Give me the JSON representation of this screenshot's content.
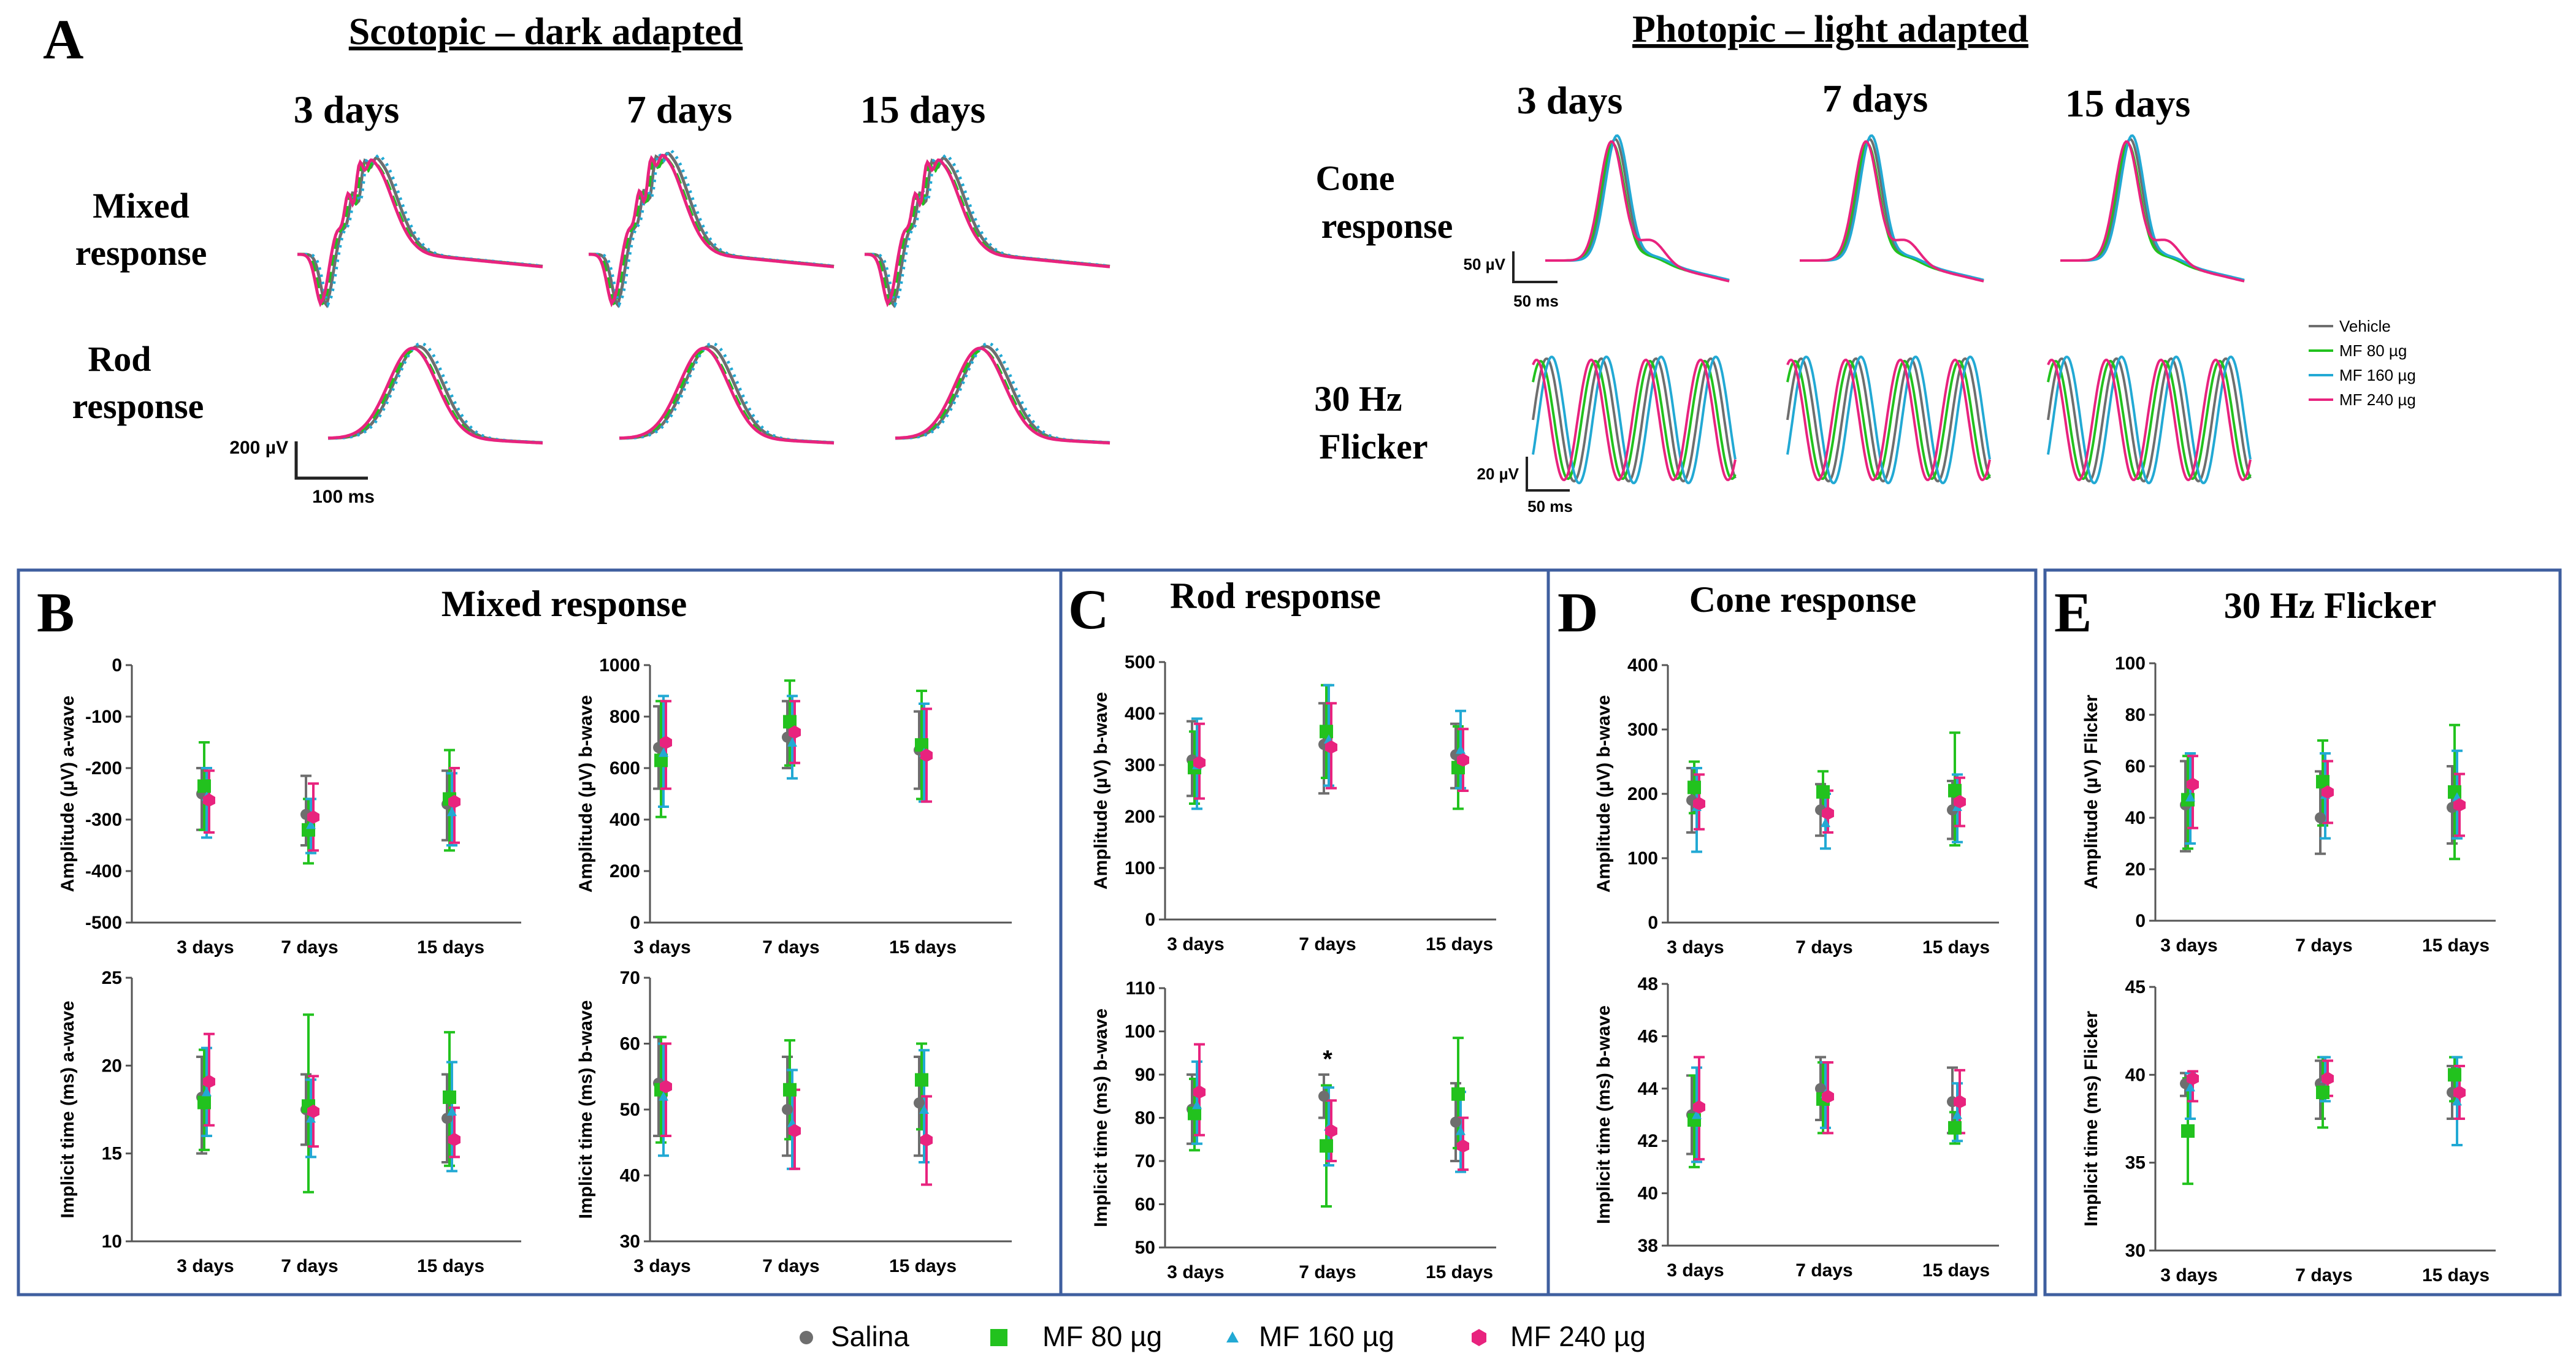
{
  "panelA": {
    "letter": "A",
    "scotopic_title": "Scotopic – dark adapted",
    "photopic_title": "Photopic – light adapted",
    "scotopic_days": [
      "3 days",
      "7 days",
      "15 days"
    ],
    "photopic_days": [
      "3 days",
      "7 days",
      "15 days"
    ],
    "mixed_label": [
      "Mixed",
      "response"
    ],
    "rod_label": [
      "Rod",
      "response"
    ],
    "cone_label": [
      "Cone",
      "response"
    ],
    "flicker_label": [
      "30 Hz",
      "Flicker"
    ],
    "scotopic_scale_v": "200 µV",
    "scotopic_scale_t": "100 ms",
    "cone_scale_v": "50 µV",
    "cone_scale_t": "50 ms",
    "flicker_scale_v": "20 µV",
    "flicker_scale_t": "50 ms",
    "legend": [
      "Vehicle",
      "MF 80 µg",
      "MF 160 µg",
      "MF 240 µg"
    ]
  },
  "colors": {
    "salina": "#6e6e6e",
    "mf80": "#22c21e",
    "mf160": "#22a9d4",
    "mf240": "#e8237e",
    "frame": "#3f5f9f"
  },
  "bottom_legend": [
    {
      "label": "Salina",
      "shape": "circle",
      "color": "#6e6e6e"
    },
    {
      "label": "MF 80 µg",
      "shape": "square",
      "color": "#22c21e"
    },
    {
      "label": "MF 160 µg",
      "shape": "triangle",
      "color": "#22a9d4"
    },
    {
      "label": "MF 240 µg",
      "shape": "hexagon",
      "color": "#e8237e"
    }
  ],
  "panels": {
    "B": {
      "letter": "B",
      "title": "Mixed response"
    },
    "C": {
      "letter": "C",
      "title": "Rod response"
    },
    "D": {
      "letter": "D",
      "title": "Cone response"
    },
    "E": {
      "letter": "E",
      "title": "30 Hz Flicker"
    }
  },
  "chart_data": [
    {
      "id": "B-a-amp",
      "type": "scatter",
      "ylabel": "Amplitude (µV) a-wave",
      "ylim": [
        -500,
        0
      ],
      "yticks": [
        -500,
        -400,
        -300,
        -200,
        -100,
        0
      ],
      "categories": [
        "3 days",
        "7 days",
        "15 days"
      ],
      "series": [
        {
          "name": "Salina",
          "values": [
            -250,
            -290,
            -270
          ],
          "err_lo": [
            -320,
            -350,
            -340
          ],
          "err_hi": [
            -200,
            -215,
            -205
          ]
        },
        {
          "name": "MF 80 µg",
          "values": [
            -235,
            -320,
            -260
          ],
          "err_lo": [
            -320,
            -385,
            -360
          ],
          "err_hi": [
            -150,
            -260,
            -165
          ]
        },
        {
          "name": "MF 160 µg",
          "values": [
            -255,
            -310,
            -285
          ],
          "err_lo": [
            -335,
            -365,
            -350
          ],
          "err_hi": [
            -200,
            -260,
            -210
          ]
        },
        {
          "name": "MF 240 µg",
          "values": [
            -262,
            -295,
            -265
          ],
          "err_lo": [
            -325,
            -360,
            -345
          ],
          "err_hi": [
            -205,
            -230,
            -200
          ]
        }
      ]
    },
    {
      "id": "B-b-amp",
      "type": "scatter",
      "ylabel": "Amplitude (µV) b-wave",
      "ylim": [
        0,
        1000
      ],
      "yticks": [
        0,
        200,
        400,
        600,
        800,
        1000
      ],
      "categories": [
        "3 days",
        "7 days",
        "15 days"
      ],
      "series": [
        {
          "name": "Salina",
          "values": [
            680,
            720,
            670
          ],
          "err_lo": [
            520,
            600,
            520
          ],
          "err_hi": [
            840,
            860,
            820
          ]
        },
        {
          "name": "MF 80 µg",
          "values": [
            630,
            780,
            690
          ],
          "err_lo": [
            410,
            610,
            480
          ],
          "err_hi": [
            860,
            940,
            900
          ]
        },
        {
          "name": "MF 160 µg",
          "values": [
            660,
            700,
            660
          ],
          "err_lo": [
            450,
            560,
            470
          ],
          "err_hi": [
            880,
            880,
            850
          ]
        },
        {
          "name": "MF 240 µg",
          "values": [
            700,
            740,
            650
          ],
          "err_lo": [
            520,
            620,
            470
          ],
          "err_hi": [
            860,
            860,
            830
          ]
        }
      ]
    },
    {
      "id": "B-a-it",
      "type": "scatter",
      "ylabel": "Implicit time (ms) a-wave",
      "ylim": [
        10,
        25
      ],
      "yticks": [
        10,
        15,
        20,
        25
      ],
      "categories": [
        "3 days",
        "7 days",
        "15 days"
      ],
      "series": [
        {
          "name": "Salina",
          "values": [
            18.2,
            17.5,
            17.0
          ],
          "err_lo": [
            15.0,
            15.5,
            14.5
          ],
          "err_hi": [
            20.5,
            19.5,
            19.5
          ]
        },
        {
          "name": "MF 80 µg",
          "values": [
            17.9,
            17.7,
            18.2
          ],
          "err_lo": [
            15.2,
            12.8,
            14.3
          ],
          "err_hi": [
            20.9,
            22.9,
            21.9
          ]
        },
        {
          "name": "MF 160 µg",
          "values": [
            18.5,
            17.0,
            17.4
          ],
          "err_lo": [
            16.0,
            14.8,
            14.0
          ],
          "err_hi": [
            21.0,
            19.2,
            20.2
          ]
        },
        {
          "name": "MF 240 µg",
          "values": [
            19.1,
            17.4,
            15.8
          ],
          "err_lo": [
            16.6,
            15.4,
            14.8
          ],
          "err_hi": [
            21.8,
            19.4,
            17.6
          ]
        }
      ]
    },
    {
      "id": "B-b-it",
      "type": "scatter",
      "ylabel": "Implicit time (ms) b-wave",
      "ylim": [
        30,
        70
      ],
      "yticks": [
        30,
        40,
        50,
        60,
        70
      ],
      "categories": [
        "3 days",
        "7 days",
        "15 days"
      ],
      "series": [
        {
          "name": "Salina",
          "values": [
            54,
            50,
            51
          ],
          "err_lo": [
            46,
            43,
            43
          ],
          "err_hi": [
            61,
            58,
            58
          ]
        },
        {
          "name": "MF 80 µg",
          "values": [
            53,
            53,
            54.5
          ],
          "err_lo": [
            45,
            45.5,
            47
          ],
          "err_hi": [
            61,
            60.5,
            60
          ]
        },
        {
          "name": "MF 160 µg",
          "values": [
            52,
            48,
            50
          ],
          "err_lo": [
            43,
            41,
            42
          ],
          "err_hi": [
            60,
            56,
            59
          ]
        },
        {
          "name": "MF 240 µg",
          "values": [
            53.5,
            46.8,
            45.4
          ],
          "err_lo": [
            46,
            41,
            38.6
          ],
          "err_hi": [
            60,
            53,
            52
          ]
        }
      ]
    },
    {
      "id": "C-b-amp",
      "type": "scatter",
      "ylabel": "Amplitude (µV) b-wave",
      "ylim": [
        0,
        500
      ],
      "yticks": [
        0,
        100,
        200,
        300,
        400,
        500
      ],
      "categories": [
        "3 days",
        "7 days",
        "15 days"
      ],
      "series": [
        {
          "name": "Salina",
          "values": [
            310,
            340,
            320
          ],
          "err_lo": [
            240,
            245,
            255
          ],
          "err_hi": [
            385,
            420,
            380
          ]
        },
        {
          "name": "MF 80 µg",
          "values": [
            295,
            365,
            295
          ],
          "err_lo": [
            225,
            275,
            215
          ],
          "err_hi": [
            365,
            455,
            375
          ]
        },
        {
          "name": "MF 160 µg",
          "values": [
            300,
            350,
            330
          ],
          "err_lo": [
            215,
            260,
            255
          ],
          "err_hi": [
            390,
            455,
            405
          ]
        },
        {
          "name": "MF 240 µg",
          "values": [
            305,
            335,
            310
          ],
          "err_lo": [
            235,
            255,
            250
          ],
          "err_hi": [
            380,
            420,
            370
          ]
        }
      ]
    },
    {
      "id": "C-b-it",
      "type": "scatter",
      "ylabel": "Implicit time (ms) b-wave",
      "ylim": [
        50,
        110
      ],
      "yticks": [
        50,
        60,
        70,
        80,
        90,
        100,
        110
      ],
      "categories": [
        "3 days",
        "7 days",
        "15 days"
      ],
      "series": [
        {
          "name": "Salina",
          "values": [
            82,
            85,
            79
          ],
          "err_lo": [
            74,
            80,
            70
          ],
          "err_hi": [
            90,
            90,
            88
          ]
        },
        {
          "name": "MF 80 µg",
          "values": [
            81,
            73.5,
            85.5
          ],
          "err_lo": [
            72.5,
            59.5,
            73
          ],
          "err_hi": [
            89,
            87.5,
            98.5
          ]
        },
        {
          "name": "MF 160 µg",
          "values": [
            83,
            78,
            77
          ],
          "err_lo": [
            74,
            69,
            67.5
          ],
          "err_hi": [
            93,
            87,
            86
          ]
        },
        {
          "name": "MF 240 µg",
          "values": [
            86,
            77,
            73.5
          ],
          "err_lo": [
            76,
            70,
            68
          ],
          "err_hi": [
            97,
            84,
            80
          ]
        }
      ],
      "annotation": {
        "text": "*",
        "category": "7 days"
      }
    },
    {
      "id": "D-b-amp",
      "type": "scatter",
      "ylabel": "Amplitude (µV) b-wave",
      "ylim": [
        0,
        400
      ],
      "yticks": [
        0,
        100,
        200,
        300,
        400
      ],
      "categories": [
        "3 days",
        "7 days",
        "15 days"
      ],
      "series": [
        {
          "name": "Salina",
          "values": [
            190,
            175,
            175
          ],
          "err_lo": [
            140,
            135,
            130
          ],
          "err_hi": [
            240,
            215,
            220
          ]
        },
        {
          "name": "MF 80 µg",
          "values": [
            210,
            203,
            205
          ],
          "err_lo": [
            170,
            170,
            120
          ],
          "err_hi": [
            250,
            235,
            295
          ]
        },
        {
          "name": "MF 160 µg",
          "values": [
            180,
            155,
            180
          ],
          "err_lo": [
            110,
            115,
            125
          ],
          "err_hi": [
            240,
            200,
            230
          ]
        },
        {
          "name": "MF 240 µg",
          "values": [
            185,
            170,
            188
          ],
          "err_lo": [
            145,
            140,
            150
          ],
          "err_hi": [
            230,
            205,
            225
          ]
        }
      ]
    },
    {
      "id": "D-b-it",
      "type": "scatter",
      "ylabel": "Implicit time (ms) b-wave",
      "ylim": [
        38,
        48
      ],
      "yticks": [
        38,
        40,
        42,
        44,
        46,
        48
      ],
      "categories": [
        "3 days",
        "7 days",
        "15 days"
      ],
      "series": [
        {
          "name": "Salina",
          "values": [
            43.0,
            44.0,
            43.5
          ],
          "err_lo": [
            41.5,
            42.8,
            42.3
          ],
          "err_hi": [
            44.5,
            45.2,
            44.8
          ]
        },
        {
          "name": "MF 80 µg",
          "values": [
            42.8,
            43.6,
            42.5
          ],
          "err_lo": [
            41.0,
            42.3,
            41.9
          ],
          "err_hi": [
            44.5,
            45.0,
            43.1
          ]
        },
        {
          "name": "MF 160 µg",
          "values": [
            43.0,
            43.8,
            43.0
          ],
          "err_lo": [
            41.2,
            42.5,
            42.0
          ],
          "err_hi": [
            44.8,
            45.0,
            44.2
          ]
        },
        {
          "name": "MF 240 µg",
          "values": [
            43.3,
            43.7,
            43.5
          ],
          "err_lo": [
            41.3,
            42.3,
            42.3
          ],
          "err_hi": [
            45.2,
            45.0,
            44.7
          ]
        }
      ]
    },
    {
      "id": "E-amp",
      "type": "scatter",
      "ylabel": "Amplitude (µV) Flicker",
      "ylim": [
        0,
        100
      ],
      "yticks": [
        0,
        20,
        40,
        60,
        80,
        100
      ],
      "categories": [
        "3 days",
        "7 days",
        "15 days"
      ],
      "series": [
        {
          "name": "Salina",
          "values": [
            45,
            40,
            44
          ],
          "err_lo": [
            27,
            26,
            30
          ],
          "err_hi": [
            62,
            58,
            60
          ]
        },
        {
          "name": "MF 80 µg",
          "values": [
            47,
            54,
            50
          ],
          "err_lo": [
            28,
            37,
            24
          ],
          "err_hi": [
            64,
            70,
            76
          ]
        },
        {
          "name": "MF 160 µg",
          "values": [
            48,
            49,
            48
          ],
          "err_lo": [
            30,
            32,
            32
          ],
          "err_hi": [
            65,
            65,
            66
          ]
        },
        {
          "name": "MF 240 µg",
          "values": [
            53,
            50,
            45
          ],
          "err_lo": [
            36,
            38,
            33
          ],
          "err_hi": [
            64,
            62,
            57
          ]
        }
      ]
    },
    {
      "id": "E-it",
      "type": "scatter",
      "ylabel": "Implicit time (ms) Flicker",
      "ylim": [
        30,
        45
      ],
      "yticks": [
        30,
        35,
        40,
        45
      ],
      "categories": [
        "3 days",
        "7 days",
        "15 days"
      ],
      "series": [
        {
          "name": "Salina",
          "values": [
            39.5,
            39.5,
            39.0
          ],
          "err_lo": [
            38.8,
            37.5,
            37.5
          ],
          "err_hi": [
            40.1,
            40.8,
            40.5
          ]
        },
        {
          "name": "MF 80 µg",
          "values": [
            36.8,
            39.0,
            40.0
          ],
          "err_lo": [
            33.8,
            37.0,
            38.5
          ],
          "err_hi": [
            39.8,
            41.0,
            41.0
          ]
        },
        {
          "name": "MF 160 µg",
          "values": [
            39.3,
            39.8,
            38.5
          ],
          "err_lo": [
            37.5,
            38.5,
            36.0
          ],
          "err_hi": [
            40.1,
            41.0,
            41.0
          ]
        },
        {
          "name": "MF 240 µg",
          "values": [
            39.8,
            39.8,
            39.0
          ],
          "err_lo": [
            38.5,
            38.8,
            37.5
          ],
          "err_hi": [
            40.2,
            40.8,
            40.5
          ]
        }
      ]
    }
  ]
}
